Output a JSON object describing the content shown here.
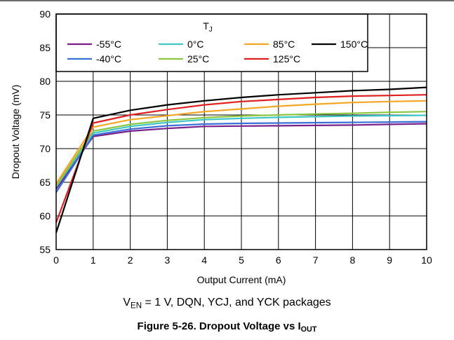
{
  "chart_data": {
    "type": "line",
    "xlabel": "Output Current (mA)",
    "ylabel": "Dropout Voltage (mV)",
    "xlim": [
      0,
      10
    ],
    "ylim": [
      55,
      90
    ],
    "x_ticks": [
      "0",
      "1",
      "2",
      "3",
      "4",
      "5",
      "6",
      "7",
      "8",
      "9",
      "10"
    ],
    "y_ticks": [
      "55",
      "60",
      "65",
      "70",
      "75",
      "80",
      "85",
      "90"
    ],
    "grid": true,
    "legend": {
      "title": "T",
      "title_sub": "J",
      "position": "top"
    },
    "x": [
      0,
      1,
      2,
      3,
      4,
      5,
      6,
      7,
      8,
      9,
      10
    ],
    "series": [
      {
        "name": "-55°C",
        "color": "#7a1f8c",
        "values": [
          64.0,
          71.8,
          72.6,
          73.0,
          73.3,
          73.35,
          73.4,
          73.45,
          73.5,
          73.6,
          73.7
        ]
      },
      {
        "name": "-40°C",
        "color": "#3a6fd8",
        "values": [
          63.5,
          72.0,
          72.9,
          73.4,
          73.65,
          73.75,
          73.8,
          73.85,
          73.9,
          73.95,
          74.0
        ]
      },
      {
        "name": "0°C",
        "color": "#3cc6c6",
        "values": [
          64.3,
          72.3,
          73.3,
          73.9,
          74.3,
          74.5,
          74.65,
          74.75,
          74.85,
          74.9,
          74.95
        ]
      },
      {
        "name": "25°C",
        "color": "#8cc63f",
        "values": [
          64.5,
          72.6,
          73.6,
          74.2,
          74.6,
          74.85,
          75.0,
          75.15,
          75.25,
          75.4,
          75.5
        ]
      },
      {
        "name": "85°C",
        "color": "#f5a623",
        "values": [
          64.8,
          73.2,
          74.3,
          74.9,
          75.5,
          75.9,
          76.3,
          76.6,
          76.85,
          77.0,
          77.1
        ]
      },
      {
        "name": "125°C",
        "color": "#e02020",
        "values": [
          59.0,
          73.8,
          75.0,
          75.8,
          76.5,
          77.0,
          77.3,
          77.6,
          77.8,
          77.9,
          78.0
        ]
      },
      {
        "name": "150°C",
        "color": "#000000",
        "values": [
          57.5,
          74.5,
          75.7,
          76.5,
          77.1,
          77.6,
          78.0,
          78.3,
          78.6,
          78.8,
          79.1
        ]
      }
    ]
  },
  "subcaption": {
    "main": "V",
    "sub": "EN",
    "rest": " = 1 V, DQN, YCJ, and YCK packages"
  },
  "figure_caption": {
    "main": "Figure 5-26. Dropout Voltage vs I",
    "sub": "OUT"
  }
}
